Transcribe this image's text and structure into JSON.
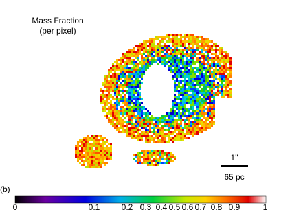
{
  "title": "Mass Fraction",
  "subtitle": "(per pixel)",
  "panel_label": "(b)",
  "scale_bar": {
    "angle": "1\"",
    "distance": "65 pc"
  },
  "colorbar": {
    "tick_labels": [
      "0",
      "0.1",
      "0.2",
      "0.3",
      "0.4",
      "0.5",
      "0.6",
      "0.7",
      "0.8",
      "0.9",
      "1"
    ]
  }
}
